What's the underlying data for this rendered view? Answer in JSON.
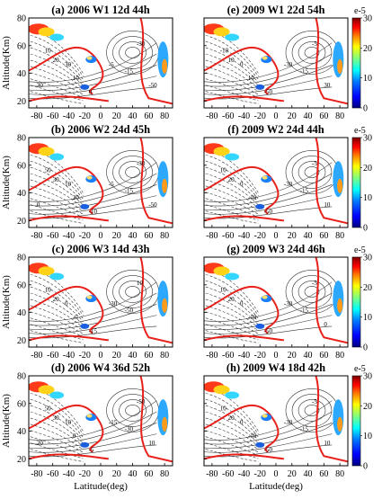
{
  "figure": {
    "xlabel": "Latitude(deg)",
    "ylabel": "Altitude(Km)"
  },
  "colorbar": {
    "unit_label": "e-5",
    "ticks": [
      "30",
      "20",
      "10",
      "0"
    ],
    "colormap": [
      "#00007f",
      "#0000ff",
      "#007fff",
      "#00ffff",
      "#7fff7f",
      "#ffff00",
      "#ff7f00",
      "#ff0000",
      "#7f0000"
    ]
  },
  "colors": {
    "zero_contour": "#e8201a",
    "contour": "#333333",
    "frame": "#000000"
  },
  "chart_data": [
    {
      "type": "heatmap",
      "title": "(a) 2006 W1 12d 44h",
      "xlim": [
        -90,
        90
      ],
      "ylim": [
        15,
        80
      ],
      "x_ticks": [
        "-80",
        "-60",
        "-40",
        "-20",
        "0",
        "20",
        "40",
        "60",
        "80"
      ],
      "y_ticks": [
        "80",
        "60",
        "40",
        "20"
      ],
      "contour_labels": [
        "10",
        "20",
        "30",
        "10",
        "0",
        "-5",
        "-15",
        "-30",
        "-50",
        "30"
      ],
      "colorbar_range": [
        0,
        30
      ]
    },
    {
      "type": "heatmap",
      "title": "(e) 2009 W1 22d 54h",
      "xlim": [
        -90,
        90
      ],
      "ylim": [
        15,
        80
      ],
      "x_ticks": [
        "-80",
        "-60",
        "-40",
        "-20",
        "0",
        "20",
        "40",
        "60",
        "80"
      ],
      "y_ticks": [
        "80",
        "60",
        "40",
        "20"
      ],
      "contour_labels": [
        "-10",
        "10",
        "0",
        "10",
        "-50",
        "-30",
        "-15",
        "-5",
        "30"
      ],
      "colorbar_range": [
        0,
        30
      ]
    },
    {
      "type": "heatmap",
      "title": "(b) 2006 W2 24d 45h",
      "xlim": [
        -90,
        90
      ],
      "ylim": [
        15,
        80
      ],
      "x_ticks": [
        "-80",
        "-60",
        "-40",
        "-20",
        "0",
        "20",
        "40",
        "60",
        "80"
      ],
      "y_ticks": [
        "80",
        "60",
        "40",
        "20"
      ],
      "contour_labels": [
        "50",
        "30",
        "10",
        "20",
        "-10",
        "-5",
        "-15",
        "-30",
        "-50",
        "0"
      ],
      "colorbar_range": [
        0,
        30
      ]
    },
    {
      "type": "heatmap",
      "title": "(f) 2009 W2 24d 44h",
      "xlim": [
        -90,
        90
      ],
      "ylim": [
        15,
        80
      ],
      "x_ticks": [
        "-80",
        "-60",
        "-40",
        "-20",
        "0",
        "20",
        "40",
        "60",
        "80"
      ],
      "y_ticks": [
        "80",
        "60",
        "40",
        "20"
      ],
      "contour_labels": [
        "10",
        "20",
        "0",
        "-10",
        "-50",
        "-30",
        "-15",
        "-5",
        "10"
      ],
      "colorbar_range": [
        0,
        30
      ]
    },
    {
      "type": "heatmap",
      "title": "(c) 2006 W3 14d 43h",
      "xlim": [
        -90,
        90
      ],
      "ylim": [
        15,
        80
      ],
      "x_ticks": [
        "-80",
        "-60",
        "-40",
        "-20",
        "0",
        "20",
        "40",
        "60",
        "80"
      ],
      "y_ticks": [
        "80",
        "60",
        "40",
        "20"
      ],
      "contour_labels": [
        "10",
        "20",
        "0",
        "-5",
        "-15",
        "-30",
        "-50",
        "10"
      ],
      "colorbar_range": [
        0,
        30
      ]
    },
    {
      "type": "heatmap",
      "title": "(g) 2009 W3 24d 46h",
      "xlim": [
        -90,
        90
      ],
      "ylim": [
        15,
        80
      ],
      "x_ticks": [
        "-80",
        "-60",
        "-40",
        "-20",
        "0",
        "20",
        "40",
        "60",
        "80"
      ],
      "y_ticks": [
        "80",
        "60",
        "40",
        "20"
      ],
      "contour_labels": [
        "10",
        "20",
        "0",
        "-10",
        "-50",
        "-30",
        "-15",
        "-5",
        "0"
      ],
      "colorbar_range": [
        0,
        30
      ]
    },
    {
      "type": "heatmap",
      "title": "(d) 2006 W4 36d 52h",
      "xlim": [
        -90,
        90
      ],
      "ylim": [
        15,
        80
      ],
      "x_ticks": [
        "-80",
        "-60",
        "-40",
        "-20",
        "0",
        "20",
        "40",
        "60",
        "80"
      ],
      "y_ticks": [
        "80",
        "60",
        "40",
        "20"
      ],
      "contour_labels": [
        "50",
        "30",
        "10",
        "0",
        "-5",
        "-15",
        "-30",
        "-50",
        "10",
        "20"
      ],
      "colorbar_range": [
        0,
        30
      ]
    },
    {
      "type": "heatmap",
      "title": "(h) 2009 W4 18d 42h",
      "xlim": [
        -90,
        90
      ],
      "ylim": [
        15,
        80
      ],
      "x_ticks": [
        "-80",
        "-60",
        "-40",
        "-20",
        "0",
        "20",
        "40",
        "60",
        "80"
      ],
      "y_ticks": [
        "80",
        "60",
        "40",
        "20"
      ],
      "contour_labels": [
        "10",
        "20",
        "0",
        "-10",
        "-50",
        "-30",
        "-15",
        "-5",
        "10"
      ],
      "colorbar_range": [
        0,
        30
      ]
    }
  ]
}
